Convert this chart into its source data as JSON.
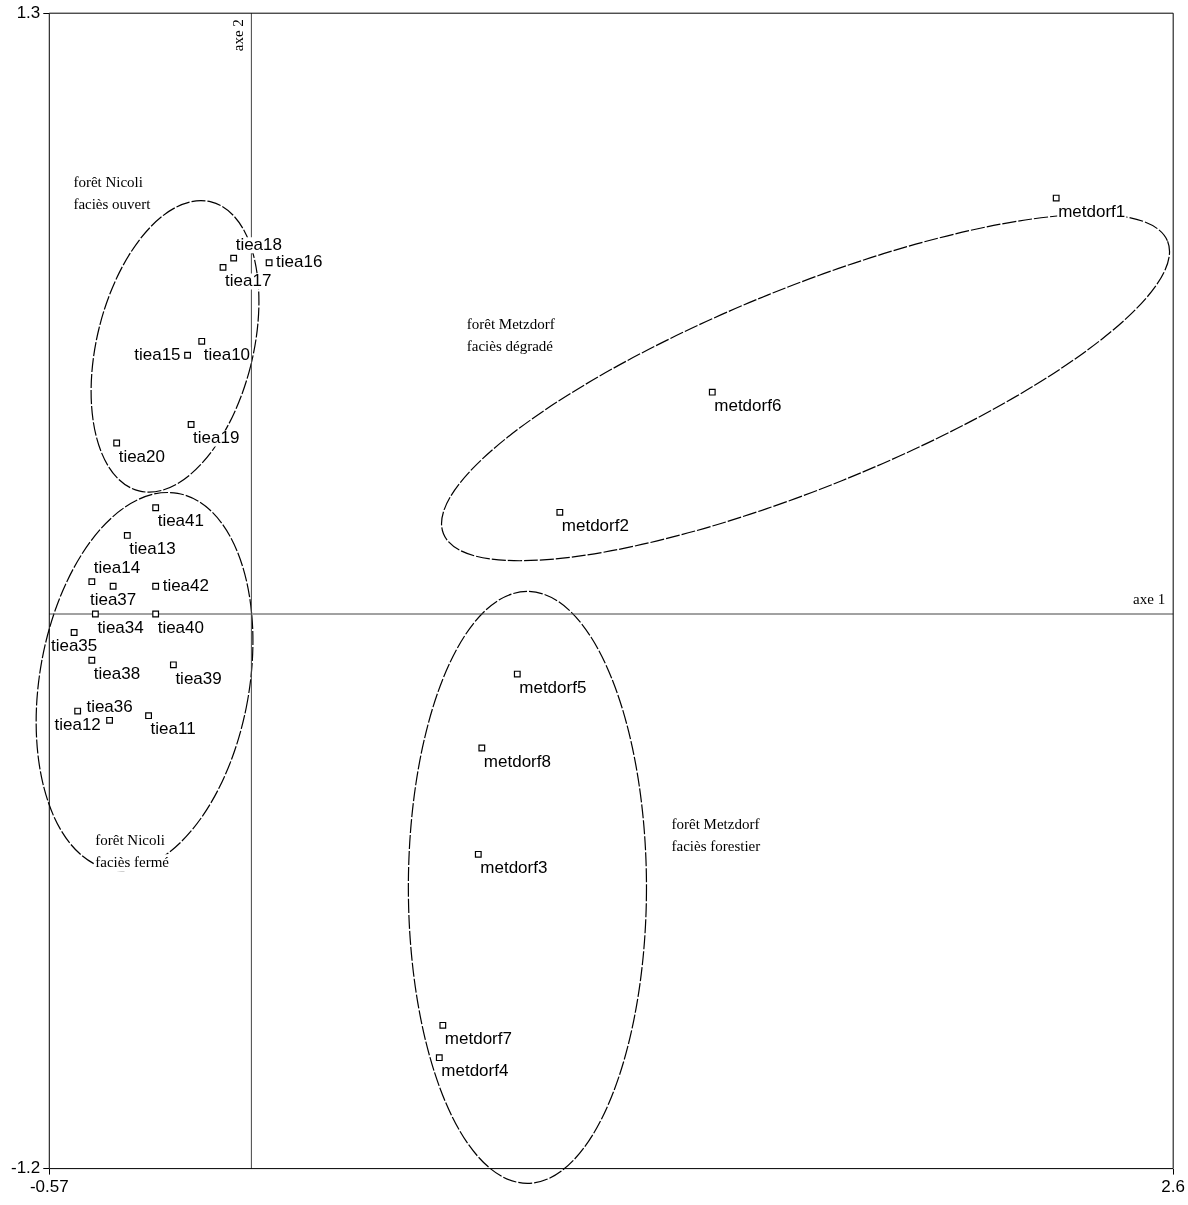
{
  "chart_data": {
    "type": "scatter",
    "xlabel": "axe 1",
    "ylabel": "axe 2",
    "xlim": [
      -0.57,
      2.6
    ],
    "ylim": [
      -1.2,
      1.3
    ],
    "xticks": [
      -0.57,
      2.6
    ],
    "yticks": [
      -1.2,
      1.3
    ],
    "grid": false,
    "marker": "square",
    "annotations": [
      "forêt Nicoli\nfaciès ouvert",
      "forêt Metzdorf\nfaciès dégradé",
      "forêt Nicoli\nfaciès fermé",
      "forêt Metzdorf\nfaciès forestier"
    ],
    "series": [
      {
        "name": "metdorf1",
        "color": "#000000",
        "x": [
          2.27
        ],
        "values": [
          0.9
        ]
      },
      {
        "name": "metdorf6",
        "color": "#000000",
        "x": [
          1.3
        ],
        "values": [
          0.48
        ]
      },
      {
        "name": "metdorf2",
        "color": "#000000",
        "x": [
          0.87
        ],
        "values": [
          0.22
        ]
      },
      {
        "name": "metdorf5",
        "color": "#000000",
        "x": [
          0.75
        ],
        "values": [
          -0.13
        ]
      },
      {
        "name": "metdorf8",
        "color": "#000000",
        "x": [
          0.65
        ],
        "values": [
          -0.29
        ]
      },
      {
        "name": "metdorf3",
        "color": "#000000",
        "x": [
          0.64
        ],
        "values": [
          -0.52
        ]
      },
      {
        "name": "metdorf7",
        "color": "#000000",
        "x": [
          0.54
        ],
        "values": [
          -0.89
        ]
      },
      {
        "name": "metdorf4",
        "color": "#000000",
        "x": [
          0.53
        ],
        "values": [
          -0.96
        ]
      },
      {
        "name": "tiea18",
        "color": "#000000",
        "x": [
          -0.05
        ],
        "values": [
          0.77
        ]
      },
      {
        "name": "tiea17",
        "color": "#000000",
        "x": [
          -0.08
        ],
        "values": [
          0.75
        ]
      },
      {
        "name": "tiea16",
        "color": "#000000",
        "x": [
          0.05
        ],
        "values": [
          0.76
        ]
      },
      {
        "name": "tiea10",
        "color": "#000000",
        "x": [
          -0.14
        ],
        "values": [
          0.59
        ]
      },
      {
        "name": "tiea15",
        "color": "#000000",
        "x": [
          -0.18
        ],
        "values": [
          0.56
        ]
      },
      {
        "name": "tiea19",
        "color": "#000000",
        "x": [
          -0.17
        ],
        "values": [
          0.41
        ]
      },
      {
        "name": "tiea20",
        "color": "#000000",
        "x": [
          -0.38
        ],
        "values": [
          0.37
        ]
      },
      {
        "name": "tiea41",
        "color": "#000000",
        "x": [
          -0.27
        ],
        "values": [
          0.23
        ]
      },
      {
        "name": "tiea13",
        "color": "#000000",
        "x": [
          -0.35
        ],
        "values": [
          0.17
        ]
      },
      {
        "name": "tiea37",
        "color": "#000000",
        "x": [
          -0.39
        ],
        "values": [
          0.06
        ]
      },
      {
        "name": "tiea14",
        "color": "#000000",
        "x": [
          -0.45
        ],
        "values": [
          0.07
        ]
      },
      {
        "name": "tiea42",
        "color": "#000000",
        "x": [
          -0.27
        ],
        "values": [
          0.06
        ]
      },
      {
        "name": "tiea40",
        "color": "#000000",
        "x": [
          -0.27
        ],
        "values": [
          0.0
        ]
      },
      {
        "name": "tiea34",
        "color": "#000000",
        "x": [
          -0.44
        ],
        "values": [
          0.0
        ]
      },
      {
        "name": "tiea35",
        "color": "#000000",
        "x": [
          -0.5
        ],
        "values": [
          -0.04
        ]
      },
      {
        "name": "tiea38",
        "color": "#000000",
        "x": [
          -0.45
        ],
        "values": [
          -0.1
        ]
      },
      {
        "name": "tiea39",
        "color": "#000000",
        "x": [
          -0.22
        ],
        "values": [
          -0.11
        ]
      },
      {
        "name": "tiea12",
        "color": "#000000",
        "x": [
          -0.49
        ],
        "values": [
          -0.21
        ]
      },
      {
        "name": "tiea11",
        "color": "#000000",
        "x": [
          -0.29
        ],
        "values": [
          -0.22
        ]
      },
      {
        "name": "tiea36",
        "color": "#000000",
        "x": [
          -0.4
        ],
        "values": [
          -0.23
        ]
      }
    ]
  }
}
